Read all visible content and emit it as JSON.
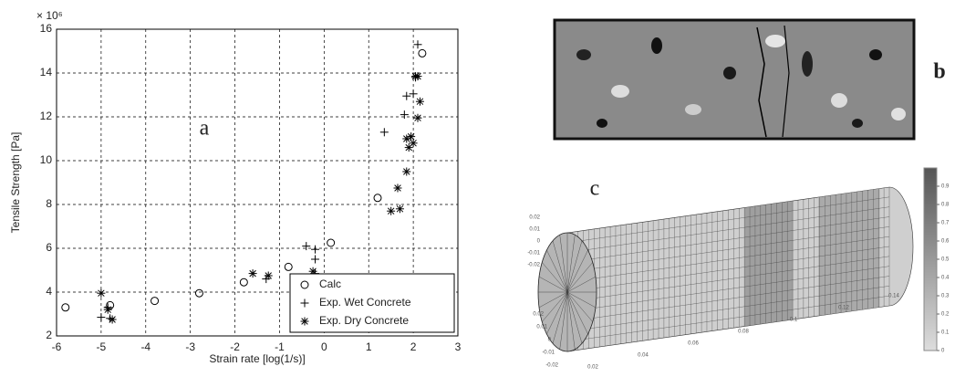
{
  "chart_data": {
    "type": "scatter",
    "xlabel": "Strain rate [log(1/s)]",
    "ylabel": "Tensile Strength [Pa]",
    "y_multiplier": "× 10⁶",
    "xlim": [
      -6,
      3
    ],
    "xticks": [
      -6,
      -5,
      -4,
      -3,
      -2,
      -1,
      0,
      1,
      2,
      3
    ],
    "ylim": [
      2,
      16
    ],
    "yticks": [
      2,
      4,
      6,
      8,
      10,
      12,
      14,
      16
    ],
    "grid": true,
    "legend": "lower right",
    "series": [
      {
        "name": "Calc",
        "marker": "circle",
        "color": "#000000",
        "x": [
          -5.8,
          -4.8,
          -3.8,
          -2.8,
          -1.8,
          -0.8,
          0.15,
          1.2,
          2.2
        ],
        "values": [
          3.3,
          3.4,
          3.6,
          3.95,
          4.45,
          5.15,
          6.25,
          8.3,
          14.9
        ]
      },
      {
        "name": "Exp. Wet Concrete",
        "marker": "plus",
        "color": "#000000",
        "x": [
          -5,
          -4.8,
          -4.85,
          -1.3,
          -0.4,
          -0.2,
          -0.2,
          -0.2,
          1.35,
          1.8,
          1.85,
          2.0,
          2.05,
          2.1
        ],
        "values": [
          2.85,
          2.8,
          3.3,
          4.6,
          6.1,
          5.95,
          5.5,
          4.85,
          11.3,
          12.1,
          12.95,
          13.05,
          13.8,
          15.3
        ]
      },
      {
        "name": "Exp. Dry Concrete",
        "marker": "star",
        "color": "#000000",
        "x": [
          -5,
          -4.75,
          -4.85,
          -1.6,
          -1.25,
          -0.25,
          1.5,
          1.7,
          1.65,
          1.85,
          1.9,
          1.95,
          1.85,
          2.0,
          2.1,
          2.15,
          2.05,
          2.1
        ],
        "values": [
          3.95,
          2.75,
          3.2,
          4.85,
          4.75,
          4.95,
          7.7,
          7.8,
          8.75,
          9.5,
          10.6,
          11.1,
          11.0,
          10.8,
          11.95,
          12.7,
          13.85,
          13.85
        ]
      }
    ]
  },
  "figure": {
    "panel_labels": [
      "a",
      "b",
      "c"
    ],
    "colorbar_ticks": [
      0.9,
      0.8,
      0.7,
      0.6,
      0.5,
      0.4,
      0.3,
      0.2,
      0.1,
      0
    ],
    "z_ticks_upper": [
      0.02,
      0.01,
      0,
      -0.01,
      -0.02
    ],
    "z_ticks_lower": [
      0.02,
      0.01,
      0,
      -0.01,
      -0.02
    ],
    "x_ticks_3d": [
      0.02,
      0.04,
      0.06,
      0.08,
      0.1,
      0.12,
      0.14
    ]
  }
}
